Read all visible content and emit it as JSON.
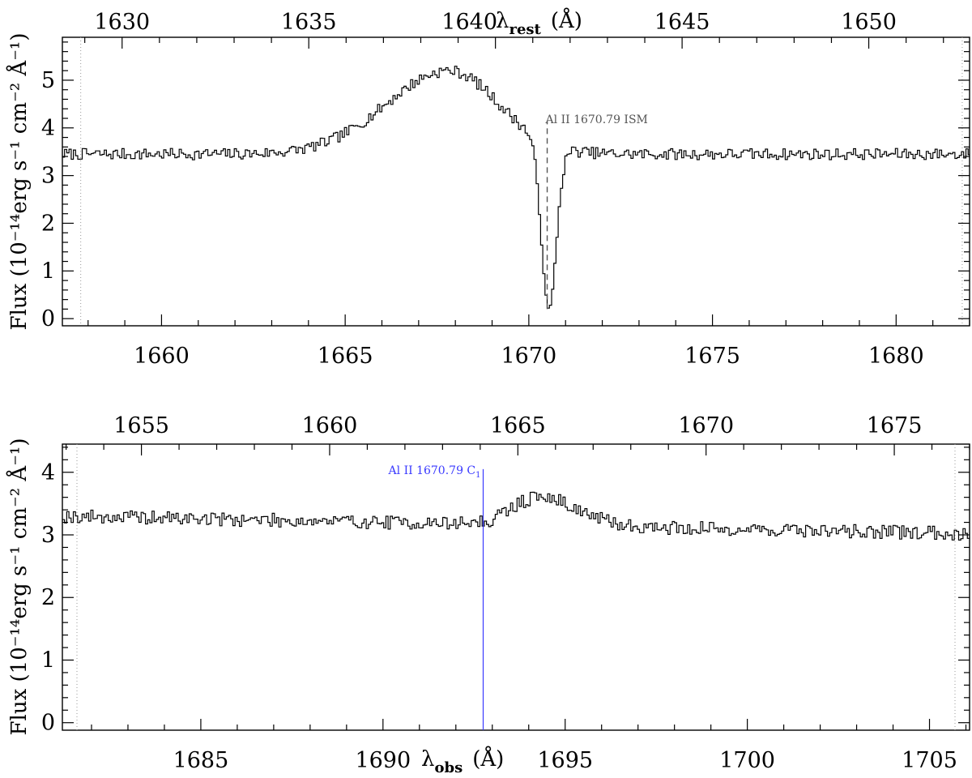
{
  "chart_data": [
    {
      "type": "line",
      "panel": "top",
      "step": true,
      "xlabel_bottom": "",
      "xlabel_top_prefix": "λ",
      "xlabel_top_sub": "rest",
      "xlabel_top_suffix": "(Å)",
      "ylabel": "Flux (10⁻¹⁴erg s⁻¹ cm⁻² Å⁻¹)",
      "xlim": [
        1657.3,
        1682.0
      ],
      "ylim": [
        -0.15,
        5.9
      ],
      "rest_xlim": [
        1628.4,
        1652.7
      ],
      "xticks": [
        1660,
        1665,
        1670,
        1675,
        1680
      ],
      "xtick_labels": [
        "1660",
        "1665",
        "1670",
        "1675",
        "1680"
      ],
      "rest_xticks": [
        1630,
        1635,
        1640,
        1645,
        1650
      ],
      "rest_xtick_labels": [
        "1630",
        "1635",
        "1640",
        "1645",
        "1650"
      ],
      "yticks": [
        0,
        1,
        2,
        3,
        4,
        5
      ],
      "ytick_labels": [
        "0",
        "1",
        "2",
        "3",
        "4",
        "5"
      ],
      "bin_width": 0.06,
      "profile": {
        "continuum": 3.45,
        "emission": {
          "center": 1667.8,
          "amplitude": 1.75,
          "sigma_left": 1.7,
          "sigma_right": 1.35
        },
        "absorption": {
          "center": 1670.52,
          "depth": 1.0,
          "sigma": 0.2,
          "floor": 0.2
        },
        "noise": 0.12
      },
      "annotations": [
        {
          "label": "Al II 1670.79 ISM",
          "x": 1670.5,
          "y_from": 0.2,
          "y_to": 4.15,
          "style": "dashed",
          "color": "#555555"
        }
      ],
      "dotted_edges": [
        1657.8,
        1681.8
      ]
    },
    {
      "type": "line",
      "panel": "bottom",
      "step": true,
      "xlabel_bottom_prefix": "λ",
      "xlabel_bottom_sub": "obs",
      "xlabel_bottom_suffix": "(Å)",
      "ylabel": "Flux (10⁻¹⁴erg s⁻¹ cm⁻² Å⁻¹)",
      "xlim": [
        1681.2,
        1706.1
      ],
      "ylim": [
        -0.12,
        4.45
      ],
      "rest_xlim": [
        1652.9,
        1677.0
      ],
      "xticks": [
        1685,
        1690,
        1695,
        1700,
        1705
      ],
      "xtick_labels": [
        "1685",
        "1690",
        "1695",
        "1700",
        "1705"
      ],
      "rest_xticks": [
        1655,
        1660,
        1665,
        1670,
        1675
      ],
      "rest_xtick_labels": [
        "1655",
        "1660",
        "1665",
        "1670",
        "1675"
      ],
      "yticks": [
        0,
        1,
        2,
        3,
        4
      ],
      "ytick_labels": [
        "0",
        "1",
        "2",
        "3",
        "4"
      ],
      "bin_width": 0.06,
      "profile": {
        "continuum": 3.3,
        "slope_to_end": -0.28,
        "emission": {
          "center": 1694.3,
          "amplitude": 0.45,
          "sigma_left": 0.8,
          "sigma_right": 1.0
        },
        "absorption": {
          "center": 1692.9,
          "depth": 0.45,
          "sigma": 0.12,
          "floor": 3.0
        },
        "noise": 0.11
      },
      "annotations": [
        {
          "label": "Al II 1670.79 C",
          "label_sub": "1",
          "x": 1692.75,
          "y_from": -0.12,
          "y_to": 4.05,
          "style": "solid",
          "color": "#3a3aff"
        }
      ],
      "dotted_edges": [
        1681.6,
        1705.7
      ]
    }
  ]
}
